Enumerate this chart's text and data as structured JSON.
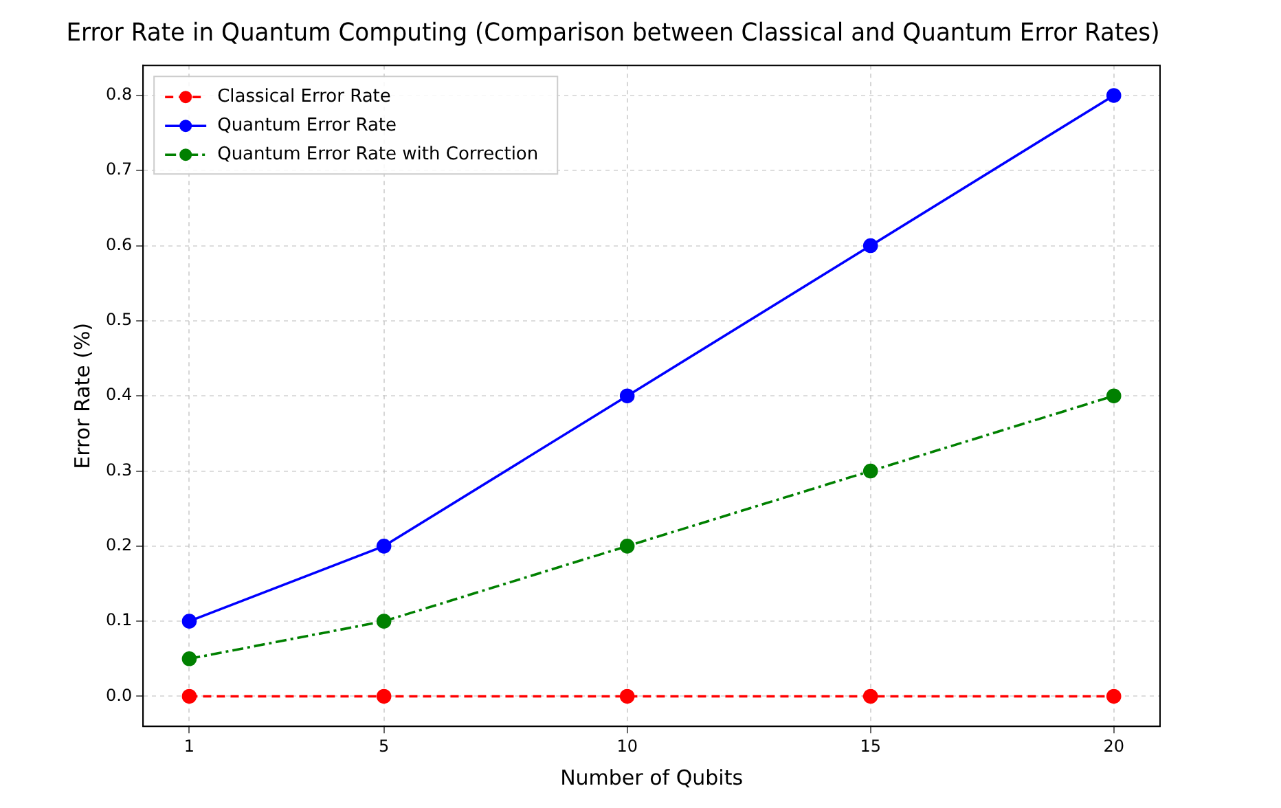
{
  "chart_data": {
    "type": "line",
    "title": "Error Rate in Quantum Computing (Comparison between Classical and Quantum Error Rates)",
    "xlabel": "Number of Qubits",
    "ylabel": "Error Rate (%)",
    "x": [
      1,
      5,
      10,
      15,
      20
    ],
    "series": [
      {
        "name": "Classical Error Rate",
        "color": "#ff0000",
        "values": [
          0,
          0,
          0,
          0,
          0
        ],
        "line_style": "dashed"
      },
      {
        "name": "Quantum Error Rate",
        "color": "#0000ff",
        "values": [
          0.1,
          0.2,
          0.4,
          0.6,
          0.8
        ],
        "line_style": "solid"
      },
      {
        "name": "Quantum Error Rate with Correction",
        "color": "#008000",
        "values": [
          0.05,
          0.1,
          0.2,
          0.3,
          0.4
        ],
        "line_style": "dashdot"
      }
    ],
    "xlim": [
      0.05,
      20.95
    ],
    "xticks": [
      1,
      5,
      10,
      15,
      20
    ],
    "ylim": [
      -0.04,
      0.84
    ],
    "yticks": [
      {
        "value": 0,
        "label": "0.0"
      },
      0.1,
      0.2,
      0.3,
      0.4,
      0.5,
      0.6,
      0.7,
      0.8
    ],
    "grid": true,
    "legend": "top left",
    "marker": "circle"
  }
}
